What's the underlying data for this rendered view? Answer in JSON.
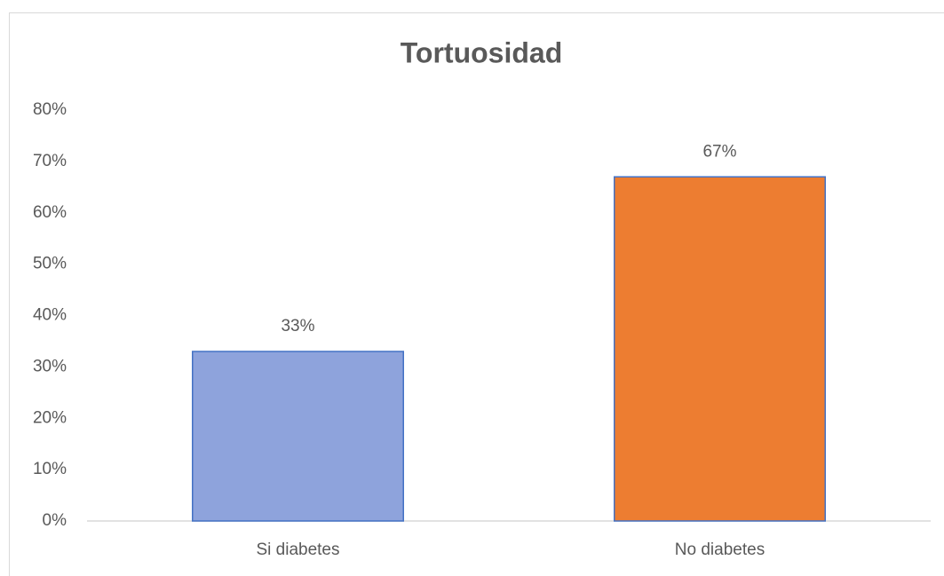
{
  "chart_data": {
    "type": "bar",
    "title": "Tortuosidad",
    "categories": [
      "Si diabetes",
      "No diabetes"
    ],
    "values": [
      33,
      67
    ],
    "value_labels": [
      "33%",
      "67%"
    ],
    "colors": [
      "#8ea3dc",
      "#ed7d31"
    ],
    "ylim": [
      0,
      80
    ],
    "yticks": [
      {
        "value": 0,
        "label": "0%"
      },
      {
        "value": 10,
        "label": "10%"
      },
      {
        "value": 20,
        "label": "20%"
      },
      {
        "value": 30,
        "label": "30%"
      },
      {
        "value": 40,
        "label": "40%"
      },
      {
        "value": 50,
        "label": "50%"
      },
      {
        "value": 60,
        "label": "60%"
      },
      {
        "value": 70,
        "label": "70%"
      },
      {
        "value": 80,
        "label": "80%"
      }
    ],
    "grid": false
  }
}
